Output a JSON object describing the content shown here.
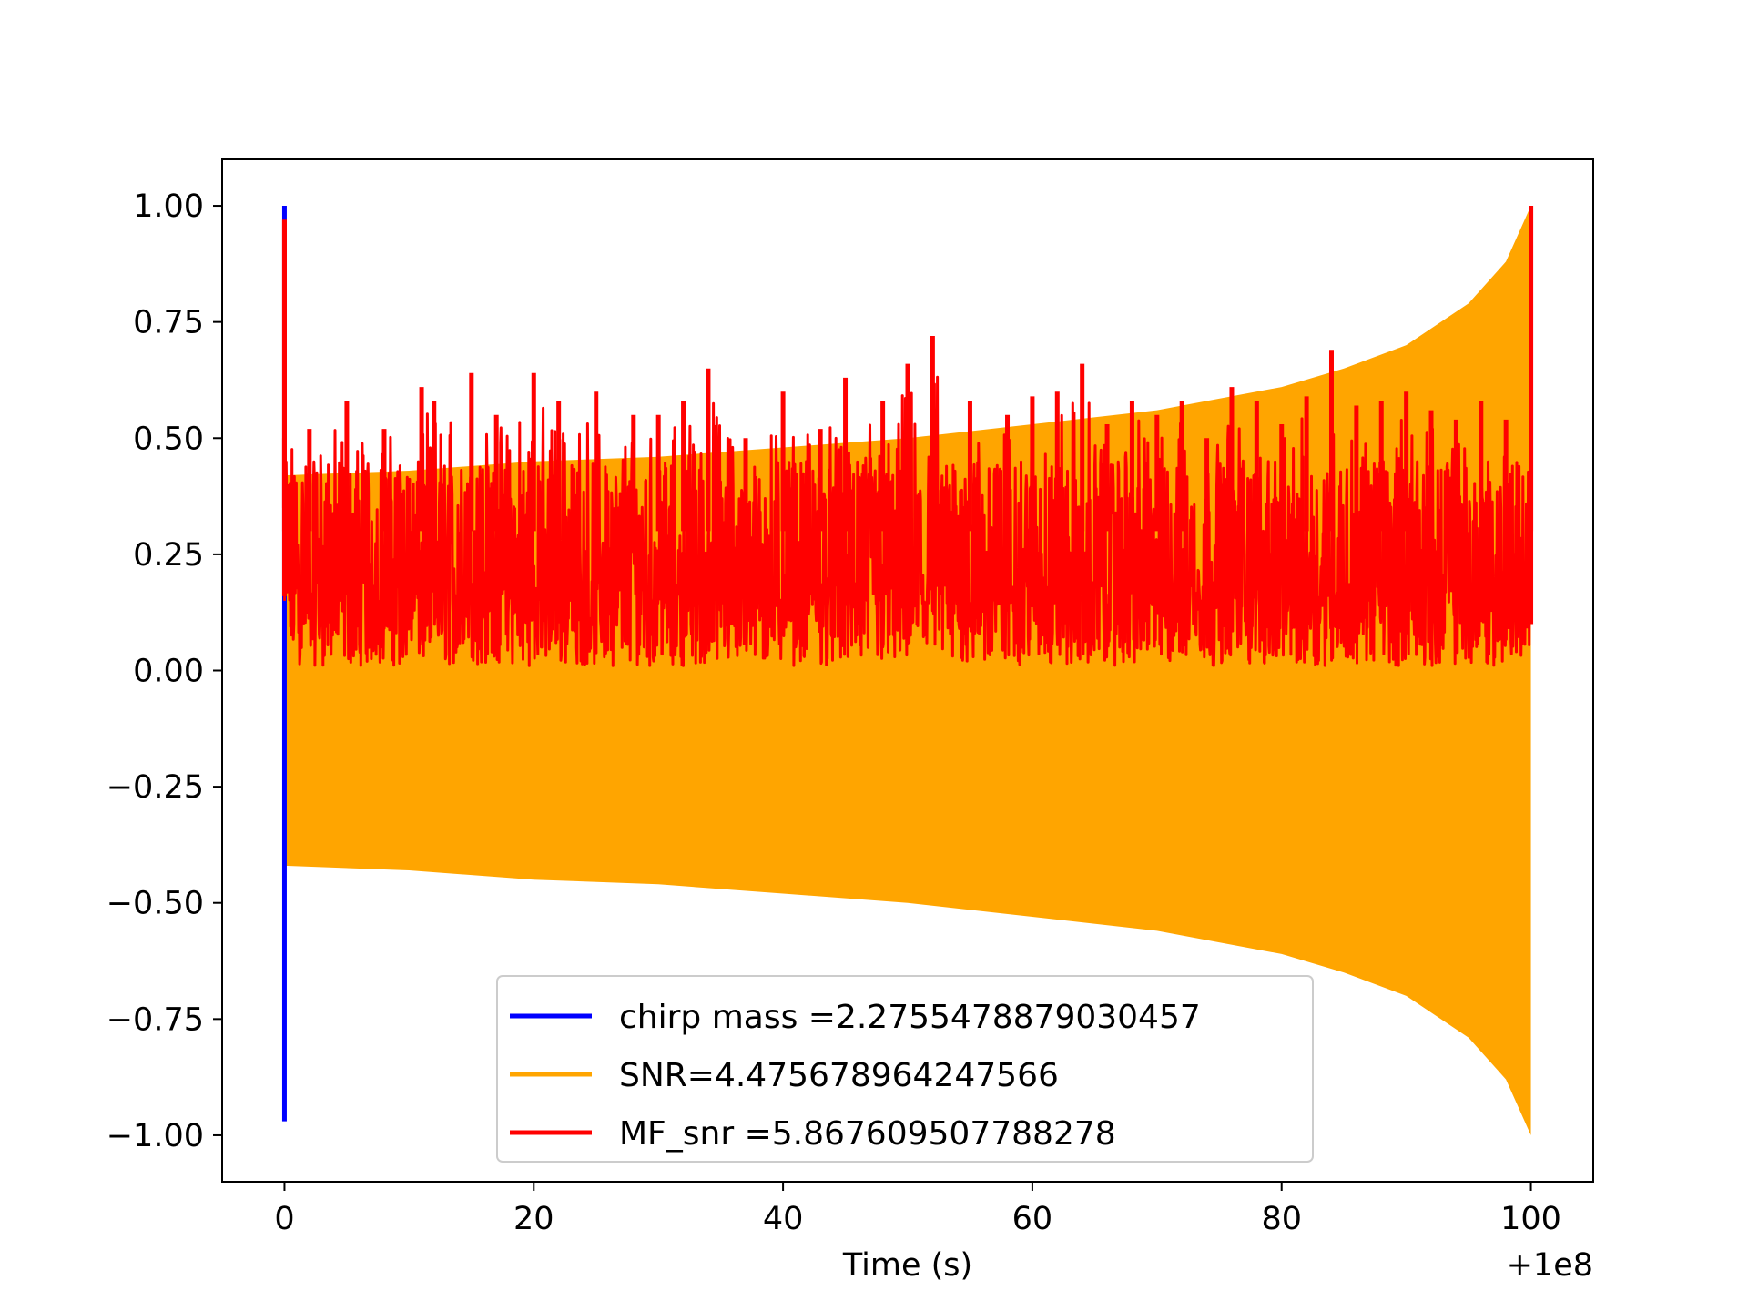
{
  "chart_data": {
    "type": "line",
    "title": "",
    "xlabel": "Time (s)",
    "ylabel": "",
    "x_offset_label": "+1e8",
    "xlim": [
      -5,
      105
    ],
    "ylim": [
      -1.1,
      1.1
    ],
    "x_ticks": [
      0,
      20,
      40,
      60,
      80,
      100
    ],
    "x_tick_labels": [
      "0",
      "20",
      "40",
      "60",
      "80",
      "100"
    ],
    "y_ticks": [
      1.0,
      0.75,
      0.5,
      0.25,
      0.0,
      -0.25,
      -0.5,
      -0.75,
      -1.0
    ],
    "y_tick_labels": [
      "1.00",
      "0.75",
      "0.50",
      "0.25",
      "0.00",
      "−0.25",
      "−0.50",
      "−0.75",
      "−1.00"
    ],
    "grid": false,
    "legend_position": "lower-center",
    "series": [
      {
        "name": "chirp mass =2.2755478879030457",
        "color": "#0000ff",
        "style": "spike",
        "x": [
          0,
          0,
          0
        ],
        "y": [
          -0.97,
          1.0,
          0.5
        ]
      },
      {
        "name": "SNR=4.475678964247566",
        "color": "#ffa500",
        "style": "chirp-envelope",
        "x": [
          0,
          10,
          20,
          30,
          40,
          50,
          60,
          70,
          80,
          85,
          90,
          95,
          98,
          100
        ],
        "upper": [
          0.42,
          0.43,
          0.45,
          0.46,
          0.48,
          0.5,
          0.53,
          0.56,
          0.61,
          0.65,
          0.7,
          0.79,
          0.88,
          1.0
        ],
        "lower": [
          -0.42,
          -0.43,
          -0.45,
          -0.46,
          -0.48,
          -0.5,
          -0.53,
          -0.56,
          -0.61,
          -0.65,
          -0.7,
          -0.79,
          -0.88,
          -1.0
        ]
      },
      {
        "name": "MF_snr =5.867609507788278",
        "color": "#ff0000",
        "style": "noise",
        "x": [
          0,
          0,
          2,
          5,
          8,
          11,
          12,
          15,
          17,
          20,
          22,
          25,
          28,
          30,
          32,
          34,
          37,
          40,
          43,
          45,
          48,
          50,
          52,
          55,
          58,
          60,
          62,
          64,
          66,
          68,
          70,
          72,
          74,
          76,
          78,
          80,
          82,
          84,
          86,
          88,
          90,
          92,
          94,
          96,
          98,
          100,
          100
        ],
        "y": [
          0.97,
          0.5,
          0.52,
          0.58,
          0.52,
          0.61,
          0.58,
          0.64,
          0.55,
          0.64,
          0.58,
          0.6,
          0.55,
          0.55,
          0.58,
          0.65,
          0.5,
          0.6,
          0.52,
          0.63,
          0.58,
          0.66,
          0.72,
          0.58,
          0.55,
          0.59,
          0.6,
          0.66,
          0.53,
          0.58,
          0.55,
          0.58,
          0.5,
          0.61,
          0.58,
          0.53,
          0.59,
          0.69,
          0.57,
          0.58,
          0.6,
          0.56,
          0.54,
          0.58,
          0.54,
          1.0,
          0.35
        ]
      }
    ]
  }
}
